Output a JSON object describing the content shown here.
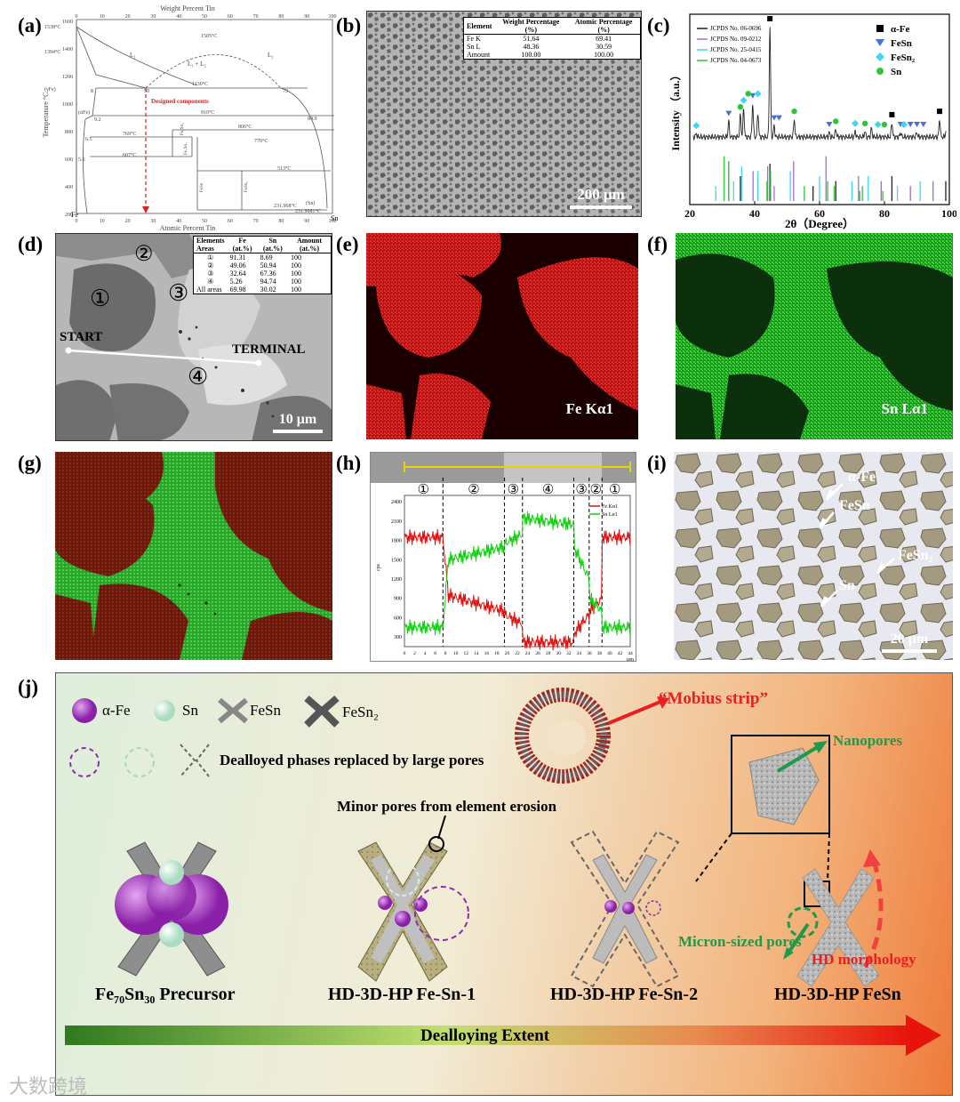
{
  "labels": {
    "a": "(a)",
    "b": "(b)",
    "c": "(c)",
    "d": "(d)",
    "e": "(e)",
    "f": "(f)",
    "g": "(g)",
    "h": "(h)",
    "i": "(i)",
    "j": "(j)"
  },
  "panel_a": {
    "top_axis": "Weight Percent Tin",
    "bottom_axis": "Atomic Percent Tin",
    "y_axis": "Temperature °C",
    "fe": "Fe",
    "sn": "Sn",
    "l1": "L₁",
    "l1l2": "L₁ + L₂",
    "l2": "L₂",
    "t1538": "1538°C",
    "t1394": "1394°C",
    "t1505": "1505°C",
    "t1130": "1130°C",
    "t910": "910°C",
    "t901": "901°C",
    "t806": "806°C",
    "t770": "770°C",
    "t769": "769°C",
    "t607": "607°C",
    "t513": "513°C",
    "t231": "231.968°C",
    "t231b": "231.9681°C",
    "gfe": "(γFe)",
    "afe": "(αFe)",
    "snp": "(Sn)",
    "n8": "8",
    "n50": "50",
    "n73": "73",
    "n849": "84.9",
    "n92": "9.2",
    "n65": "6.5",
    "n56": "5.6",
    "fe5sn3": "Fe₅Sn₃",
    "fe3sn2": "Fe₃Sn₂",
    "fesn": "FeSn",
    "fesn2": "FeSn₂",
    "designed": "Designed components",
    "top_ticks": [
      "0",
      "10",
      "20",
      "30",
      "40",
      "50",
      "60",
      "70",
      "80",
      "90",
      "100"
    ],
    "bottom_ticks": [
      "0",
      "10",
      "20",
      "30",
      "40",
      "50",
      "60",
      "70",
      "80",
      "90",
      "100"
    ],
    "y_ticks": [
      "1600",
      "1400",
      "1200",
      "1000",
      "800",
      "600",
      "400",
      "200"
    ]
  },
  "panel_b": {
    "headers": [
      "Element",
      "Weight Percentage (%)",
      "Atomic Percentage (%)"
    ],
    "rows": [
      [
        "Fe K",
        "51.64",
        "69.41"
      ],
      [
        "Sn L",
        "48.36",
        "30.59"
      ],
      [
        "Amount",
        "100.00",
        "100.00"
      ]
    ],
    "scale": "200 μm"
  },
  "chart_data": {
    "type": "line",
    "title": "",
    "xlabel": "2θ（Degree）",
    "ylabel": "Intensity （a.u.）",
    "xlim": [
      20,
      100
    ],
    "x_ticks": [
      "20",
      "40",
      "60",
      "80",
      "100"
    ],
    "references": [
      "JCPDS No. 06-0696",
      "JCPDS No. 09-0212",
      "JCPDS No. 25-0415",
      "JCPDS No. 04-0673"
    ],
    "legend": [
      "α-Fe",
      "FeSn",
      "FeSn₂",
      "Sn"
    ],
    "colors": {
      "afe": "#000000",
      "fesn": "#4a6fd8",
      "fesn2": "#3fd6ee",
      "sn": "#2ec436",
      "ref1": "#222222",
      "ref2": "#9b6fd6",
      "ref3": "#3fd6ee",
      "ref4": "#2ec436"
    },
    "peaks": [
      [
        22,
        0.03
      ],
      [
        32,
        0.14
      ],
      [
        35.6,
        0.2
      ],
      [
        36.6,
        0.26
      ],
      [
        39.4,
        0.3
      ],
      [
        41,
        0.22
      ],
      [
        44.7,
        1.0
      ],
      [
        46,
        0.1
      ],
      [
        52.2,
        0.16
      ],
      [
        63,
        0.04
      ],
      [
        65,
        0.07
      ],
      [
        71,
        0.05
      ],
      [
        74,
        0.05
      ],
      [
        76,
        0.08
      ],
      [
        82.3,
        0.13
      ],
      [
        85,
        0.04
      ],
      [
        90,
        0.04
      ],
      [
        97,
        0.16
      ],
      [
        99,
        0.06
      ]
    ],
    "sticks": [
      {
        "x": [
          35.6,
          44.7,
          58,
          65,
          82.3,
          98.9
        ],
        "h": [
          0.5,
          0.75,
          0.3,
          0.4,
          0.5,
          0.4
        ],
        "c": "ref1"
      },
      {
        "x": [
          32,
          39.5,
          44,
          46,
          52,
          62,
          72,
          79,
          88,
          95
        ],
        "h": [
          0.8,
          0.6,
          0.7,
          0.3,
          0.8,
          0.9,
          0.5,
          0.4,
          0.3,
          0.4
        ],
        "c": "ref2"
      },
      {
        "x": [
          28,
          33.5,
          36,
          41,
          51,
          60,
          70,
          75,
          84,
          91
        ],
        "h": [
          0.3,
          0.4,
          0.7,
          0.6,
          0.6,
          0.5,
          0.4,
          0.5,
          0.3,
          0.4
        ],
        "c": "ref3"
      },
      {
        "x": [
          30.6,
          32,
          43.8,
          44.9,
          55.3,
          62.5,
          64.5,
          72.4,
          73.2,
          79.5
        ],
        "h": [
          0.9,
          0.8,
          0.4,
          0.6,
          0.3,
          0.4,
          0.3,
          0.2,
          0.3,
          0.2
        ],
        "c": "ref4"
      }
    ]
  },
  "panel_d": {
    "headers": [
      "Elements",
      "Areas",
      "Fe (at.%)",
      "Sn (at.%)",
      "Amount (at.%)"
    ],
    "rows": [
      [
        "①",
        "91.31",
        "8.69",
        "100"
      ],
      [
        "②",
        "49.06",
        "50.94",
        "100"
      ],
      [
        "③",
        "32.64",
        "67.36",
        "100"
      ],
      [
        "④",
        "5.26",
        "94.74",
        "100"
      ],
      [
        "All areas",
        "69.98",
        "30.02",
        "100"
      ]
    ],
    "start": "START",
    "terminal": "TERMINAL",
    "r1": "①",
    "r2": "②",
    "r3": "③",
    "r4": "④",
    "scale": "10 μm"
  },
  "panel_e": {
    "label": "Fe Kα1",
    "color": "#d81c1c"
  },
  "panel_f": {
    "label": "Sn Lα1",
    "color": "#2fc42f"
  },
  "panel_h": {
    "regions": [
      "①",
      "②",
      "③",
      "④",
      "③",
      "②",
      "①"
    ],
    "y_ticks": [
      "2400",
      "2100",
      "1800",
      "1500",
      "1200",
      "900",
      "600",
      "300"
    ],
    "x_ticks": [
      "0",
      "2",
      "4",
      "6",
      "8",
      "10",
      "12",
      "14",
      "16",
      "18",
      "20",
      "22",
      "24",
      "26",
      "28",
      "30",
      "32",
      "34",
      "36",
      "38",
      "40",
      "42",
      "44"
    ],
    "x_unit": "μm",
    "y_unit": "cps",
    "legend": [
      "Fe Kα1",
      "Sn Lα1"
    ]
  },
  "panel_i": {
    "afe": "α-Fe",
    "fesn": "FeSn",
    "fesn2": "FeSn₂",
    "sn": "Sn",
    "scale": "20 μm"
  },
  "panel_j": {
    "legend_afe": "α-Fe",
    "legend_sn": "Sn",
    "legend_fesn": "FeSn",
    "legend_fesn2": "FeSn₂",
    "dealloyed": "Dealloyed phases replaced by large pores",
    "mobius": "“Mobius strip”",
    "nanopores": "Nanopores",
    "minor_pores": "Minor pores from element erosion",
    "micron_pores": "Micron-sized pores",
    "hd_morph": "HD morphology",
    "stage1": "Fe₇₀Sn₃₀ Precursor",
    "stage2": "HD-3D-HP Fe-Sn-1",
    "stage3": "HD-3D-HP Fe-Sn-2",
    "stage4": "HD-3D-HP FeSn",
    "extent": "Dealloying Extent"
  },
  "watermark": "大数跨境"
}
